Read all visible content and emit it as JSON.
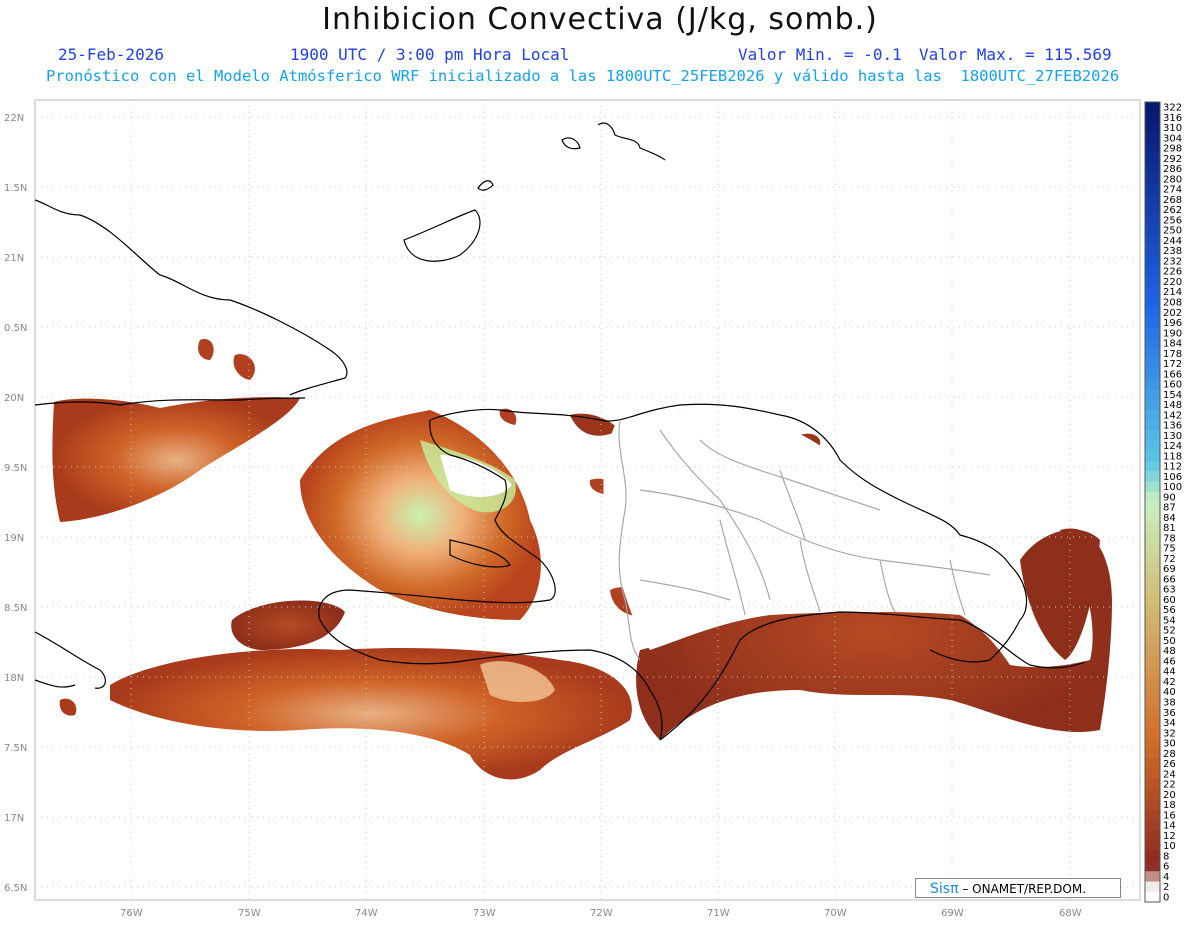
{
  "header": {
    "title": "Inhibicion Convectiva (J/kg, somb.)",
    "date": "25-Feb-2026",
    "time": "1900 UTC / 3:00 pm Hora Local",
    "valmin": "Valor Min. = -0.1",
    "valmax": "Valor Max. = 115.569",
    "subtitle": "Pronóstico con el Modelo Atmósferico WRF inicializado a las 1800UTC_25FEB2026 y válido hasta las  1800UTC_27FEB2026"
  },
  "lat_labels": [
    "22N",
    "1.5N",
    "21N",
    "0.5N",
    "20N",
    "9.5N",
    "19N",
    "8.5N",
    "18N",
    "7.5N",
    "17N",
    "6.5N"
  ],
  "lon_labels": [
    "76W",
    "75W",
    "74W",
    "73W",
    "72W",
    "71W",
    "70W",
    "69W",
    "68W"
  ],
  "colorbar_labels": [
    "322",
    "316",
    "310",
    "304",
    "298",
    "292",
    "286",
    "280",
    "274",
    "268",
    "262",
    "256",
    "250",
    "244",
    "238",
    "232",
    "226",
    "220",
    "214",
    "208",
    "202",
    "196",
    "190",
    "184",
    "178",
    "172",
    "166",
    "160",
    "154",
    "148",
    "142",
    "136",
    "130",
    "124",
    "118",
    "112",
    "106",
    "100",
    "90",
    "87",
    "84",
    "81",
    "78",
    "75",
    "72",
    "69",
    "66",
    "63",
    "60",
    "56",
    "54",
    "52",
    "50",
    "48",
    "46",
    "44",
    "42",
    "40",
    "38",
    "36",
    "34",
    "32",
    "30",
    "28",
    "26",
    "24",
    "22",
    "20",
    "18",
    "16",
    "14",
    "12",
    "10",
    "8",
    "6",
    "4",
    "2",
    "0"
  ],
  "credit": {
    "brand": "Sisπ",
    "text": "– ONAMET/REP.DOM."
  },
  "colors": {
    "cin_low": "#8b2e1a",
    "cin_mid": "#c8561c",
    "cin_high": "#b8f0a0",
    "frame": "#888888"
  }
}
